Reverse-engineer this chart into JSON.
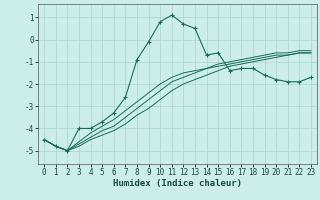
{
  "xlabel": "Humidex (Indice chaleur)",
  "background_color": "#cceee8",
  "grid_color": "#aad4ce",
  "line_color": "#1a6b5a",
  "xlim": [
    -0.5,
    23.5
  ],
  "ylim": [
    -5.6,
    1.6
  ],
  "yticks": [
    -5,
    -4,
    -3,
    -2,
    -1,
    0,
    1
  ],
  "xticks": [
    0,
    1,
    2,
    3,
    4,
    5,
    6,
    7,
    8,
    9,
    10,
    11,
    12,
    13,
    14,
    15,
    16,
    17,
    18,
    19,
    20,
    21,
    22,
    23
  ],
  "series1_x": [
    0,
    1,
    2,
    3,
    4,
    5,
    6,
    7,
    8,
    9,
    10,
    11,
    12,
    13,
    14,
    15,
    16,
    17,
    18,
    19,
    20,
    21,
    22,
    23
  ],
  "series1_y": [
    -4.5,
    -4.8,
    -5.0,
    -4.0,
    -4.0,
    -3.7,
    -3.3,
    -2.6,
    -0.9,
    -0.1,
    0.8,
    1.1,
    0.7,
    0.5,
    -0.7,
    -0.6,
    -1.4,
    -1.3,
    -1.3,
    -1.6,
    -1.8,
    -1.9,
    -1.9,
    -1.7
  ],
  "series2_x": [
    0,
    1,
    2,
    3,
    4,
    5,
    6,
    7,
    8,
    9,
    10,
    11,
    12,
    13,
    14,
    15,
    16,
    17,
    18,
    19,
    20,
    21,
    22,
    23
  ],
  "series2_y": [
    -4.5,
    -4.8,
    -5.0,
    -4.6,
    -4.2,
    -3.9,
    -3.6,
    -3.2,
    -2.8,
    -2.4,
    -2.0,
    -1.7,
    -1.5,
    -1.4,
    -1.3,
    -1.2,
    -1.1,
    -1.0,
    -0.9,
    -0.8,
    -0.7,
    -0.7,
    -0.6,
    -0.6
  ],
  "series3_x": [
    0,
    1,
    2,
    3,
    4,
    5,
    6,
    7,
    8,
    9,
    10,
    11,
    12,
    13,
    14,
    15,
    16,
    17,
    18,
    19,
    20,
    21,
    22,
    23
  ],
  "series3_y": [
    -4.5,
    -4.8,
    -5.0,
    -4.7,
    -4.4,
    -4.1,
    -3.9,
    -3.5,
    -3.1,
    -2.7,
    -2.3,
    -1.9,
    -1.7,
    -1.5,
    -1.3,
    -1.1,
    -1.0,
    -0.9,
    -0.8,
    -0.7,
    -0.6,
    -0.6,
    -0.5,
    -0.5
  ],
  "series4_x": [
    0,
    1,
    2,
    3,
    4,
    5,
    6,
    7,
    8,
    9,
    10,
    11,
    12,
    13,
    14,
    15,
    16,
    17,
    18,
    19,
    20,
    21,
    22,
    23
  ],
  "series4_y": [
    -4.5,
    -4.8,
    -5.0,
    -4.8,
    -4.5,
    -4.3,
    -4.1,
    -3.8,
    -3.4,
    -3.1,
    -2.7,
    -2.3,
    -2.0,
    -1.8,
    -1.6,
    -1.4,
    -1.2,
    -1.1,
    -1.0,
    -0.9,
    -0.8,
    -0.7,
    -0.6,
    -0.6
  ],
  "tick_fontsize": 5.5,
  "xlabel_fontsize": 6.5,
  "spine_color": "#555555"
}
